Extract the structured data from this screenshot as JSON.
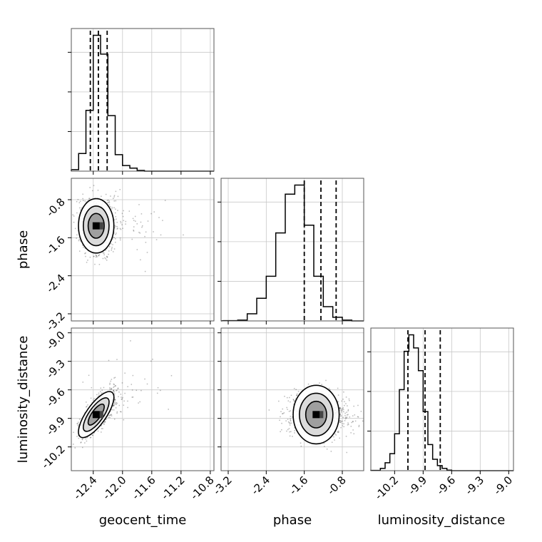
{
  "chart_data": {
    "type": "corner",
    "title": "",
    "parameters": [
      "geocent_time",
      "phase",
      "luminosity_distance"
    ],
    "axes_labels": {
      "x": [
        "geocent_time",
        "phase",
        "luminosity_distance"
      ],
      "y": [
        "",
        "phase",
        "luminosity_distance"
      ]
    },
    "ranges": {
      "geocent_time": [
        -12.7,
        -10.75
      ],
      "phase": [
        -3.35,
        -0.35
      ],
      "luminosity_distance": [
        -10.45,
        -8.95
      ]
    },
    "ticks": {
      "geocent_time": [
        "-12.4",
        "-12.0",
        "-11.6",
        "-11.2",
        "-10.8"
      ],
      "phase": [
        "-3.2",
        "-2.4",
        "-1.6",
        "-0.8"
      ],
      "luminosity_distance": [
        "-10.2",
        "-9.9",
        "-9.6",
        "-9.3",
        "-9.0"
      ]
    },
    "tick_values": {
      "geocent_time": [
        -12.4,
        -12.0,
        -11.6,
        -11.2,
        -10.8
      ],
      "phase": [
        -3.2,
        -2.4,
        -1.6,
        -0.8
      ],
      "luminosity_distance": [
        -10.2,
        -9.9,
        -9.6,
        -9.3,
        -9.0
      ]
    },
    "histograms": [
      {
        "parameter": "geocent_time",
        "bin_edges": [
          -12.7,
          -12.6,
          -12.5,
          -12.4,
          -12.3,
          -12.2,
          -12.1,
          -12.0,
          -11.9,
          -11.8,
          -11.7,
          -11.6
        ],
        "counts": [
          4,
          47,
          162,
          362,
          312,
          148,
          44,
          15,
          8,
          2,
          0
        ],
        "quantiles": [
          -12.44,
          -12.33,
          -12.21
        ]
      },
      {
        "parameter": "phase",
        "bin_edges": [
          -3.3,
          -3.0,
          -2.8,
          -2.6,
          -2.4,
          -2.2,
          -2.0,
          -1.8,
          -1.6,
          -1.4,
          -1.2,
          -1.0,
          -0.8,
          -0.6,
          -0.4
        ],
        "counts": [
          2,
          6,
          55,
          175,
          345,
          680,
          980,
          1050,
          740,
          345,
          110,
          28,
          6,
          0
        ],
        "quantiles": [
          -1.6,
          -1.25,
          -0.93
        ]
      },
      {
        "parameter": "luminosity_distance",
        "bin_edges": [
          -10.45,
          -10.35,
          -10.3,
          -10.25,
          -10.2,
          -10.15,
          -10.1,
          -10.05,
          -10.0,
          -9.95,
          -9.9,
          -9.85,
          -9.8,
          -9.75,
          -9.7,
          -9.65,
          -9.6,
          -9.55,
          -9.5
        ],
        "counts": [
          1,
          8,
          28,
          60,
          130,
          285,
          420,
          478,
          432,
          352,
          208,
          92,
          40,
          18,
          8,
          2,
          0,
          0
        ],
        "quantiles": [
          -10.06,
          -9.88,
          -9.72
        ]
      }
    ],
    "contour_panels": [
      {
        "x": "geocent_time",
        "y": "phase",
        "peak": [
          -12.36,
          -1.35
        ],
        "spread": [
          0.11,
          0.26
        ],
        "correlation": 0.0
      },
      {
        "x": "geocent_time",
        "y": "luminosity_distance",
        "peak": [
          -12.36,
          -9.86
        ],
        "spread": [
          0.11,
          0.11
        ],
        "correlation": 0.75
      },
      {
        "x": "phase",
        "y": "luminosity_distance",
        "peak": [
          -1.35,
          -9.86
        ],
        "spread": [
          0.28,
          0.11
        ],
        "correlation": 0.0
      }
    ],
    "contour_levels": "39%, 86%, 99% probability mass",
    "quantiles_shown": "16th, 50th, 84th percentiles (dashed)",
    "grid": true
  }
}
